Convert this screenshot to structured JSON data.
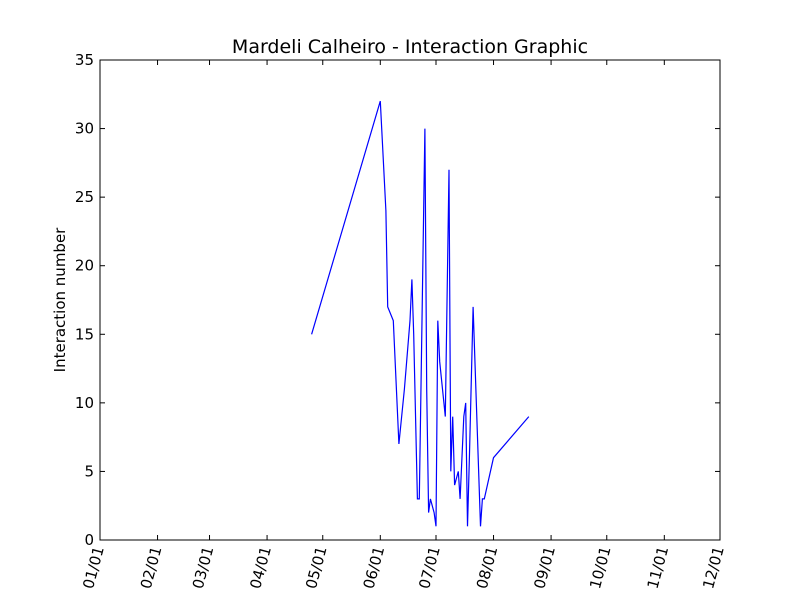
{
  "chart_data": {
    "type": "line",
    "title": "Mardeli Calheiro - Interaction Graphic",
    "xlabel": "",
    "ylabel": "Interaction number",
    "x_tick_labels": [
      "01/01",
      "02/01",
      "03/01",
      "04/01",
      "05/01",
      "06/01",
      "07/01",
      "08/01",
      "09/01",
      "10/01",
      "11/01",
      "12/01"
    ],
    "y_tick_labels": [
      "0",
      "5",
      "10",
      "15",
      "20",
      "25",
      "30",
      "35"
    ],
    "ylim": [
      0,
      35
    ],
    "xlim": [
      "01/01",
      "12/01"
    ],
    "grid": false,
    "colors": {
      "line": "#0000ff",
      "axes": "#000000",
      "background": "#ffffff"
    },
    "series": [
      {
        "x": [
          "04/25",
          "06/01",
          "06/04",
          "06/05",
          "06/08",
          "06/11",
          "06/14",
          "06/17",
          "06/18",
          "06/19",
          "06/21",
          "06/22",
          "06/25",
          "06/26",
          "06/27",
          "06/28",
          "06/30",
          "07/01",
          "07/02",
          "07/03",
          "07/06",
          "07/08",
          "07/09",
          "07/10",
          "07/11",
          "07/13",
          "07/14",
          "07/16",
          "07/17",
          "07/18",
          "07/19",
          "07/21",
          "07/25",
          "07/26",
          "07/27",
          "08/01",
          "08/20"
        ],
        "y": [
          15,
          32,
          24,
          17,
          16,
          7,
          11,
          16,
          19,
          15,
          3,
          3,
          30,
          11,
          2,
          3,
          2,
          1,
          16,
          13,
          9,
          27,
          5,
          9,
          4,
          5,
          3,
          9,
          10,
          1,
          6,
          17,
          1,
          3,
          3,
          6,
          9
        ]
      }
    ]
  }
}
